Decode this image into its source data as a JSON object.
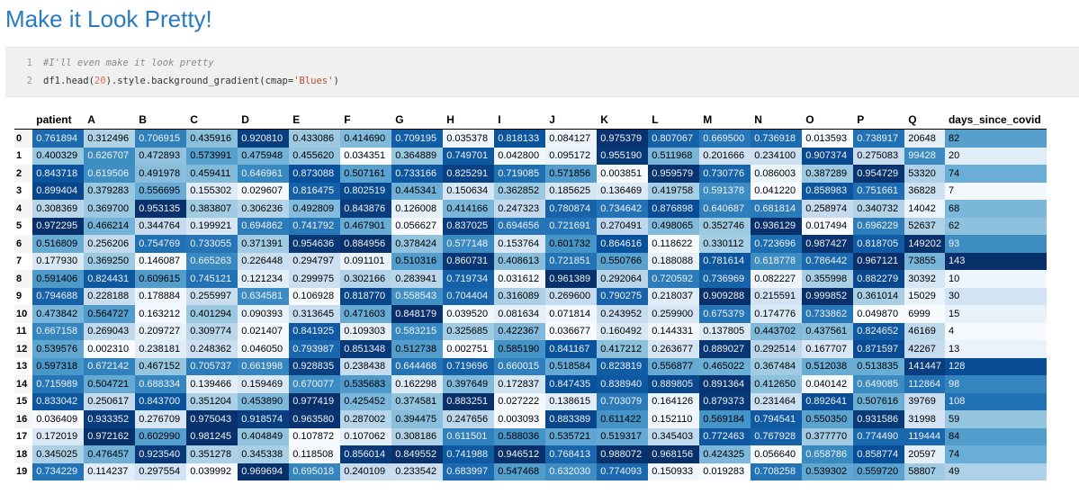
{
  "heading": "Make it Look Pretty!",
  "code": {
    "lines": [
      {
        "num": "1",
        "parts": [
          {
            "cls": "comment",
            "text": "#I'll even make it look pretty"
          }
        ]
      },
      {
        "num": "2",
        "parts": [
          {
            "cls": "code",
            "text": "df1.head("
          },
          {
            "cls": "num",
            "text": "20"
          },
          {
            "cls": "code",
            "text": ").style.background_gradient(cmap="
          },
          {
            "cls": "str",
            "text": "'Blues'"
          },
          {
            "cls": "code",
            "text": ")"
          }
        ]
      }
    ]
  },
  "table": {
    "columns": [
      "patient",
      "A",
      "B",
      "C",
      "D",
      "E",
      "F",
      "G",
      "H",
      "I",
      "J",
      "K",
      "L",
      "M",
      "N",
      "O",
      "P",
      "Q",
      "days_since_covid"
    ],
    "index": [
      "0",
      "1",
      "2",
      "3",
      "4",
      "5",
      "6",
      "7",
      "8",
      "9",
      "10",
      "11",
      "12",
      "13",
      "14",
      "15",
      "16",
      "17",
      "18",
      "19"
    ],
    "rows": [
      [
        "0.761894",
        "0.312496",
        "0.706915",
        "0.435916",
        "0.920810",
        "0.433086",
        "0.414690",
        "0.709195",
        "0.035378",
        "0.818133",
        "0.084127",
        "0.975379",
        "0.807067",
        "0.669500",
        "0.736918",
        "0.013593",
        "0.738917",
        "20648",
        "82"
      ],
      [
        "0.400329",
        "0.626707",
        "0.472893",
        "0.573991",
        "0.475948",
        "0.455620",
        "0.034351",
        "0.364889",
        "0.749701",
        "0.042800",
        "0.095172",
        "0.955190",
        "0.511968",
        "0.201666",
        "0.234100",
        "0.907374",
        "0.275083",
        "99428",
        "20"
      ],
      [
        "0.843718",
        "0.619506",
        "0.491978",
        "0.459411",
        "0.646961",
        "0.873088",
        "0.507161",
        "0.733166",
        "0.825291",
        "0.719085",
        "0.571856",
        "0.003851",
        "0.959579",
        "0.730776",
        "0.086003",
        "0.387289",
        "0.954729",
        "53320",
        "74"
      ],
      [
        "0.899404",
        "0.379283",
        "0.556695",
        "0.155302",
        "0.029607",
        "0.816475",
        "0.802519",
        "0.445341",
        "0.150634",
        "0.362852",
        "0.185625",
        "0.136469",
        "0.419758",
        "0.591378",
        "0.041220",
        "0.858983",
        "0.751661",
        "36828",
        "7"
      ],
      [
        "0.308369",
        "0.369700",
        "0.953135",
        "0.383807",
        "0.306236",
        "0.492809",
        "0.843876",
        "0.126008",
        "0.414166",
        "0.247323",
        "0.780874",
        "0.734642",
        "0.876898",
        "0.640687",
        "0.681814",
        "0.258974",
        "0.340732",
        "14042",
        "68"
      ],
      [
        "0.972295",
        "0.466214",
        "0.344764",
        "0.199921",
        "0.694862",
        "0.741792",
        "0.467901",
        "0.056627",
        "0.837025",
        "0.694656",
        "0.721691",
        "0.270491",
        "0.498065",
        "0.352746",
        "0.936129",
        "0.017494",
        "0.696229",
        "52637",
        "62"
      ],
      [
        "0.516809",
        "0.256206",
        "0.754769",
        "0.733055",
        "0.371391",
        "0.954636",
        "0.884956",
        "0.378424",
        "0.577148",
        "0.153764",
        "0.601732",
        "0.864616",
        "0.118622",
        "0.330112",
        "0.723696",
        "0.987427",
        "0.818705",
        "149202",
        "93"
      ],
      [
        "0.177930",
        "0.369250",
        "0.146087",
        "0.665263",
        "0.226448",
        "0.294797",
        "0.091101",
        "0.510316",
        "0.860731",
        "0.408613",
        "0.721851",
        "0.550766",
        "0.188088",
        "0.781614",
        "0.618778",
        "0.786442",
        "0.967121",
        "73855",
        "143"
      ],
      [
        "0.591406",
        "0.824431",
        "0.609615",
        "0.745121",
        "0.121234",
        "0.299975",
        "0.302166",
        "0.283941",
        "0.719734",
        "0.031612",
        "0.961389",
        "0.292064",
        "0.720592",
        "0.736969",
        "0.082227",
        "0.355998",
        "0.882279",
        "30392",
        "10"
      ],
      [
        "0.794688",
        "0.228188",
        "0.178884",
        "0.255997",
        "0.634581",
        "0.106928",
        "0.818770",
        "0.558543",
        "0.704404",
        "0.316089",
        "0.269600",
        "0.790275",
        "0.218037",
        "0.909288",
        "0.215591",
        "0.999852",
        "0.361014",
        "15029",
        "30"
      ],
      [
        "0.473842",
        "0.564727",
        "0.163212",
        "0.401294",
        "0.090393",
        "0.313645",
        "0.471603",
        "0.848179",
        "0.039520",
        "0.081634",
        "0.071814",
        "0.243952",
        "0.259900",
        "0.675379",
        "0.174776",
        "0.733862",
        "0.049870",
        "6999",
        "15"
      ],
      [
        "0.667158",
        "0.269043",
        "0.209727",
        "0.309774",
        "0.021407",
        "0.841925",
        "0.109303",
        "0.583215",
        "0.325685",
        "0.422367",
        "0.036677",
        "0.160492",
        "0.144331",
        "0.137805",
        "0.443702",
        "0.437561",
        "0.824652",
        "46169",
        "4"
      ],
      [
        "0.539576",
        "0.002310",
        "0.238181",
        "0.248362",
        "0.046050",
        "0.793987",
        "0.851348",
        "0.512738",
        "0.002751",
        "0.585190",
        "0.841167",
        "0.417212",
        "0.263677",
        "0.889027",
        "0.292514",
        "0.167707",
        "0.871597",
        "42267",
        "13"
      ],
      [
        "0.597318",
        "0.672142",
        "0.467152",
        "0.705737",
        "0.661998",
        "0.928835",
        "0.238438",
        "0.644468",
        "0.719696",
        "0.660015",
        "0.518584",
        "0.823819",
        "0.556877",
        "0.465022",
        "0.367484",
        "0.512038",
        "0.513835",
        "141447",
        "128"
      ],
      [
        "0.715989",
        "0.504721",
        "0.688334",
        "0.139466",
        "0.159469",
        "0.670077",
        "0.535683",
        "0.162298",
        "0.397649",
        "0.172837",
        "0.847435",
        "0.838940",
        "0.889805",
        "0.891364",
        "0.412650",
        "0.040142",
        "0.649085",
        "112864",
        "98"
      ],
      [
        "0.833042",
        "0.250617",
        "0.843700",
        "0.351204",
        "0.453890",
        "0.977419",
        "0.425452",
        "0.374581",
        "0.883251",
        "0.027222",
        "0.138615",
        "0.703079",
        "0.164126",
        "0.879373",
        "0.231464",
        "0.892641",
        "0.507616",
        "39769",
        "108"
      ],
      [
        "0.036409",
        "0.933352",
        "0.276709",
        "0.975043",
        "0.918574",
        "0.963580",
        "0.287002",
        "0.394475",
        "0.247656",
        "0.003093",
        "0.883389",
        "0.611422",
        "0.152110",
        "0.569184",
        "0.794541",
        "0.550350",
        "0.931586",
        "31998",
        "59"
      ],
      [
        "0.172019",
        "0.972162",
        "0.602990",
        "0.981245",
        "0.404849",
        "0.107872",
        "0.107062",
        "0.308186",
        "0.611501",
        "0.588036",
        "0.535721",
        "0.519317",
        "0.345403",
        "0.772463",
        "0.767928",
        "0.377770",
        "0.774490",
        "119444",
        "84"
      ],
      [
        "0.345025",
        "0.476457",
        "0.923540",
        "0.351278",
        "0.345338",
        "0.118508",
        "0.856014",
        "0.849552",
        "0.741988",
        "0.946512",
        "0.768413",
        "0.988072",
        "0.968156",
        "0.424325",
        "0.056640",
        "0.658786",
        "0.858774",
        "20597",
        "74"
      ],
      [
        "0.734229",
        "0.114237",
        "0.297554",
        "0.039992",
        "0.969694",
        "0.695018",
        "0.240109",
        "0.233542",
        "0.683997",
        "0.547468",
        "0.632030",
        "0.774093",
        "0.150933",
        "0.019283",
        "0.708258",
        "0.539302",
        "0.559720",
        "58807",
        "49"
      ]
    ]
  }
}
